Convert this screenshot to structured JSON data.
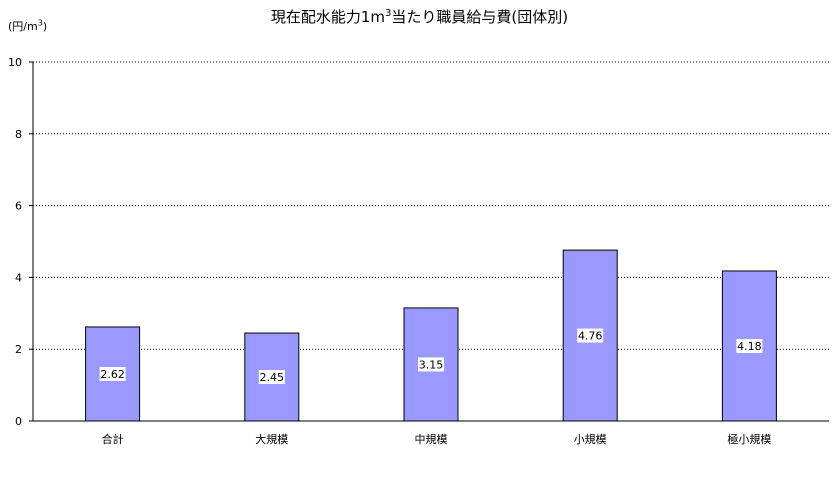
{
  "chart_data": {
    "type": "bar",
    "title_main": "現在配水能力1m",
    "title_sup": "3",
    "title_rest": "当たり職員給与費(団体別)",
    "ylabel_main": "(円/m",
    "ylabel_sup": "3",
    "ylabel_close": ")",
    "categories": [
      "合計",
      "大規模",
      "中規模",
      "小規模",
      "極小規模"
    ],
    "values": [
      2.62,
      2.45,
      3.15,
      4.76,
      4.18
    ],
    "data_labels": [
      "2.62",
      "2.45",
      "3.15",
      "4.76",
      "4.18"
    ],
    "ylim": [
      0,
      10
    ],
    "yticks": [
      0,
      2,
      4,
      6,
      8,
      10
    ],
    "grid": true,
    "legend": "none",
    "bar_color": "#9999ff",
    "bar_edge_color": "#000000",
    "grid_color": "#000000"
  }
}
